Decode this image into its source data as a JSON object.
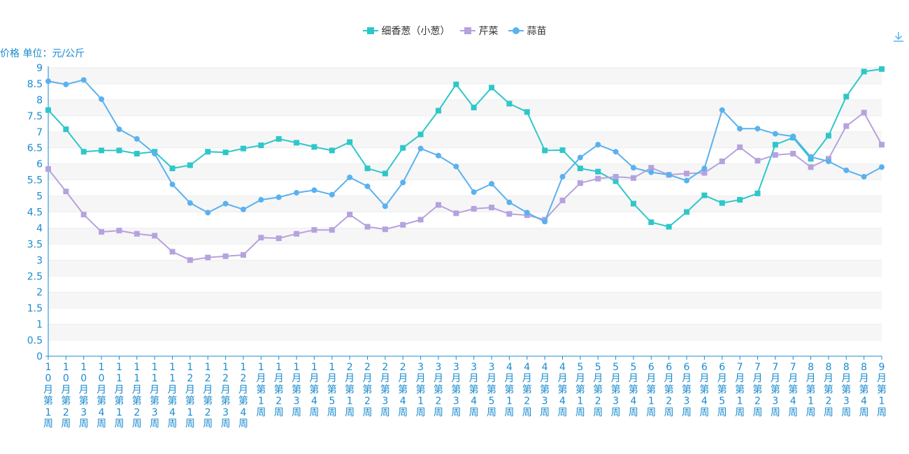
{
  "colors": {
    "axis": "#1a8bcf",
    "series": [
      "#2ec7c9",
      "#b6a2de",
      "#5ab1ef"
    ],
    "grid": "#eeeeee",
    "band": "#f6f6f6"
  },
  "toolbar": {
    "download_icon": "download-icon"
  },
  "chart_data": {
    "type": "line",
    "ylabel": "价格 单位：元/公斤",
    "ylim": [
      0,
      9
    ],
    "yticks": [
      "0",
      "0.5",
      "1",
      "1.5",
      "2",
      "2.5",
      "3",
      "3.5",
      "4",
      "4.5",
      "5",
      "5.5",
      "6",
      "6.5",
      "7",
      "7.5",
      "8",
      "8.5",
      "9"
    ],
    "grid": true,
    "legend": "top-center",
    "categories": [
      "10月第1周",
      "10月第2周",
      "10月第3周",
      "10月第4周",
      "11月第1周",
      "11月第2周",
      "11月第3周",
      "11月第4周",
      "12月第1周",
      "12月第2周",
      "12月第3周",
      "12月第4周",
      "1月第1周",
      "1月第2周",
      "1月第3周",
      "1月第4周",
      "1月第5周",
      "2月第1周",
      "2月第2周",
      "2月第3周",
      "2月第4周",
      "3月第1周",
      "3月第2周",
      "3月第3周",
      "3月第4周",
      "3月第5周",
      "4月第1周",
      "4月第2周",
      "4月第3周",
      "4月第4周",
      "5月第1周",
      "5月第2周",
      "5月第3周",
      "5月第4周",
      "6月第1周",
      "6月第2周",
      "6月第3周",
      "6月第4周",
      "6月第5周",
      "7月第1周",
      "7月第2周",
      "7月第3周",
      "7月第4周",
      "8月第1周",
      "8月第2周",
      "8月第3周",
      "8月第4周",
      "9月第1周"
    ],
    "series": [
      {
        "name": "细香葱（小葱）",
        "marker": "square",
        "values": [
          7.68,
          7.08,
          6.38,
          6.42,
          6.42,
          6.32,
          6.38,
          5.86,
          5.96,
          6.38,
          6.36,
          6.48,
          6.58,
          6.78,
          6.66,
          6.53,
          6.42,
          6.68,
          5.86,
          5.7,
          6.5,
          6.92,
          7.66,
          8.48,
          7.76,
          8.38,
          7.88,
          7.62,
          6.42,
          6.43,
          5.86,
          5.76,
          5.46,
          4.76,
          4.18,
          4.04,
          4.5,
          5.02,
          4.78,
          4.88,
          5.08,
          6.6,
          6.82,
          6.16,
          6.88,
          8.1,
          8.88,
          8.96
        ]
      },
      {
        "name": "芹菜",
        "marker": "square",
        "values": [
          5.84,
          5.14,
          4.42,
          3.88,
          3.92,
          3.82,
          3.76,
          3.26,
          3.0,
          3.08,
          3.12,
          3.16,
          3.7,
          3.68,
          3.82,
          3.94,
          3.94,
          4.42,
          4.04,
          3.96,
          4.1,
          4.26,
          4.72,
          4.46,
          4.6,
          4.64,
          4.44,
          4.4,
          4.26,
          4.86,
          5.4,
          5.54,
          5.6,
          5.56,
          5.88,
          5.66,
          5.7,
          5.72,
          6.08,
          6.52,
          6.1,
          6.28,
          6.32,
          5.9,
          6.16,
          7.18,
          7.6,
          6.6
        ]
      },
      {
        "name": "蒜苗",
        "marker": "circle",
        "values": [
          8.58,
          8.48,
          8.62,
          8.02,
          7.08,
          6.78,
          6.32,
          5.36,
          4.78,
          4.48,
          4.76,
          4.58,
          4.88,
          4.96,
          5.1,
          5.18,
          5.04,
          5.58,
          5.3,
          4.68,
          5.42,
          6.48,
          6.26,
          5.92,
          5.12,
          5.38,
          4.8,
          4.48,
          4.2,
          5.6,
          6.2,
          6.6,
          6.38,
          5.88,
          5.74,
          5.66,
          5.48,
          5.86,
          7.68,
          7.1,
          7.1,
          6.94,
          6.86,
          6.22,
          6.08,
          5.8,
          5.6,
          5.9
        ]
      }
    ]
  }
}
